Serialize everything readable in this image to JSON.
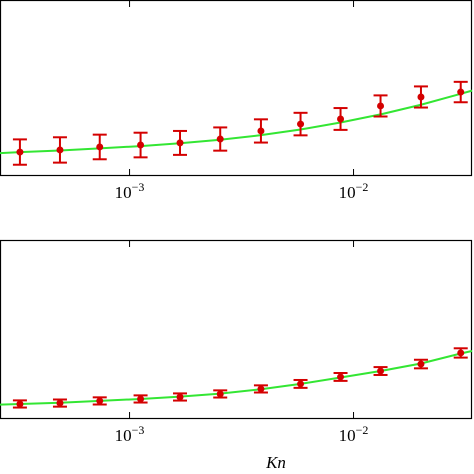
{
  "chart_data": [
    {
      "type": "errorbar",
      "xscale": "log",
      "xlim": [
        0.000264,
        0.0338
      ],
      "ylim": [
        0,
        10
      ],
      "xticks": [
        {
          "value": 0.001,
          "label": "10",
          "exponent": "−3"
        },
        {
          "value": 0.01,
          "label": "10",
          "exponent": "−2"
        }
      ],
      "series": [
        {
          "color": "#33e633",
          "style": "line",
          "x": [
            0.000264,
            0.000324,
            0.000489,
            0.000736,
            0.00112,
            0.00168,
            0.00254,
            0.00386,
            0.0058,
            0.00875,
            0.0132,
            0.02,
            0.0301,
            0.0338
          ],
          "values": [
            1.3,
            1.36,
            1.45,
            1.57,
            1.7,
            1.86,
            2.06,
            2.32,
            2.64,
            3.04,
            3.5,
            4.05,
            4.67,
            4.85
          ]
        },
        {
          "color": "#d40000",
          "style": "errorbar",
          "x": [
            0.000324,
            0.000489,
            0.000736,
            0.00112,
            0.00168,
            0.00254,
            0.00386,
            0.0058,
            0.00875,
            0.0132,
            0.02,
            0.0301
          ],
          "values": [
            1.36,
            1.48,
            1.65,
            1.76,
            1.88,
            2.1,
            2.56,
            2.95,
            3.24,
            3.98,
            4.49,
            4.77
          ],
          "errors": [
            0.72,
            0.72,
            0.7,
            0.7,
            0.68,
            0.66,
            0.66,
            0.64,
            0.62,
            0.6,
            0.6,
            0.58
          ]
        }
      ]
    },
    {
      "type": "errorbar",
      "xscale": "log",
      "xlim": [
        0.000264,
        0.0338
      ],
      "ylim": [
        0,
        10
      ],
      "x_label": "Kn",
      "xticks": [
        {
          "value": 0.001,
          "label": "10",
          "exponent": "−3"
        },
        {
          "value": 0.01,
          "label": "10",
          "exponent": "−2"
        }
      ],
      "series": [
        {
          "color": "#33e633",
          "style": "line",
          "x": [
            0.000264,
            0.000324,
            0.000489,
            0.000736,
            0.00112,
            0.00168,
            0.00254,
            0.00386,
            0.0058,
            0.00875,
            0.0132,
            0.02,
            0.0301,
            0.0338
          ],
          "values": [
            0.8,
            0.84,
            0.91,
            1.01,
            1.12,
            1.25,
            1.42,
            1.66,
            1.96,
            2.32,
            2.68,
            3.1,
            3.66,
            3.8
          ]
        },
        {
          "color": "#d40000",
          "style": "errorbar",
          "x": [
            0.000324,
            0.000489,
            0.000736,
            0.00112,
            0.00168,
            0.00254,
            0.00386,
            0.0058,
            0.00875,
            0.0132,
            0.02,
            0.0301
          ],
          "values": [
            0.84,
            0.89,
            1.01,
            1.12,
            1.23,
            1.4,
            1.68,
            1.96,
            2.35,
            2.68,
            3.07,
            3.69
          ],
          "errors": [
            0.2,
            0.2,
            0.2,
            0.2,
            0.2,
            0.2,
            0.2,
            0.22,
            0.22,
            0.22,
            0.24,
            0.26
          ]
        }
      ]
    }
  ]
}
